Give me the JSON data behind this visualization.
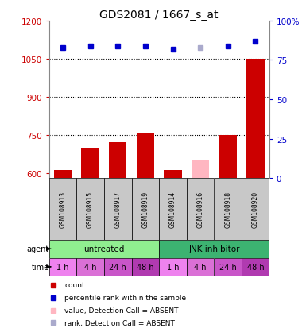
{
  "title": "GDS2081 / 1667_s_at",
  "samples": [
    "GSM108913",
    "GSM108915",
    "GSM108917",
    "GSM108919",
    "GSM108914",
    "GSM108916",
    "GSM108918",
    "GSM108920"
  ],
  "count_values": [
    610,
    700,
    720,
    760,
    610,
    650,
    750,
    1050
  ],
  "count_absent": [
    false,
    false,
    false,
    false,
    false,
    true,
    false,
    false
  ],
  "percentile_values": [
    83,
    84,
    84,
    84,
    82,
    83,
    84,
    87
  ],
  "percentile_absent": [
    false,
    false,
    false,
    false,
    false,
    true,
    false,
    false
  ],
  "ylim_left": [
    580,
    1200
  ],
  "ylim_right": [
    0,
    100
  ],
  "yticks_left": [
    600,
    750,
    900,
    1050,
    1200
  ],
  "yticks_right": [
    0,
    25,
    50,
    75,
    100
  ],
  "ytick_dotted": [
    750,
    900,
    1050
  ],
  "agent_groups": [
    {
      "label": "untreated",
      "start": 0,
      "end": 4,
      "color": "#90EE90"
    },
    {
      "label": "JNK inhibitor",
      "start": 4,
      "end": 8,
      "color": "#3CB371"
    }
  ],
  "time_labels": [
    "1 h",
    "4 h",
    "24 h",
    "48 h",
    "1 h",
    "4 h",
    "24 h",
    "48 h"
  ],
  "time_colors": [
    "#EE82EE",
    "#DA70D6",
    "#C855C8",
    "#B03AB0",
    "#EE82EE",
    "#DA70D6",
    "#C855C8",
    "#B03AB0"
  ],
  "bar_color_present": "#CC0000",
  "bar_color_absent": "#FFB6C1",
  "dot_color_present": "#0000CC",
  "dot_color_absent": "#AAAACC",
  "sample_bg_color": "#C8C8C8",
  "left_tick_color": "#CC0000",
  "right_tick_color": "#0000CC",
  "legend_items": [
    {
      "color": "#CC0000",
      "label": "count"
    },
    {
      "color": "#0000CC",
      "label": "percentile rank within the sample"
    },
    {
      "color": "#FFB6C1",
      "label": "value, Detection Call = ABSENT"
    },
    {
      "color": "#AAAACC",
      "label": "rank, Detection Call = ABSENT"
    }
  ]
}
